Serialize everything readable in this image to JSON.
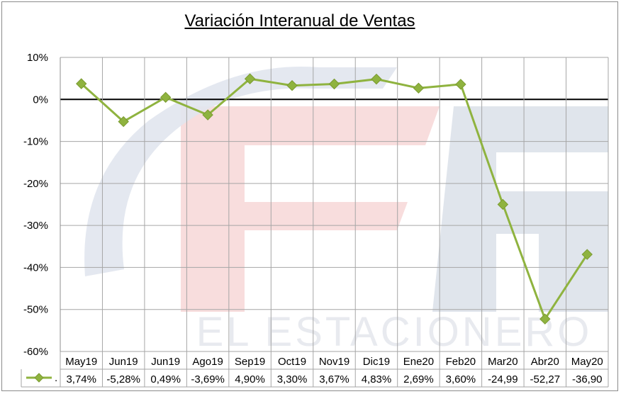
{
  "chart_data": {
    "type": "line",
    "title": "Variación Interanual de Ventas",
    "categories": [
      "May19",
      "Jun19",
      "Jun19",
      "Ago19",
      "Sep19",
      "Oct19",
      "Nov19",
      "Dic19",
      "Ene20",
      "Feb20",
      "Mar20",
      "Abr20",
      "May20"
    ],
    "series": [
      {
        "values": [
          3.74,
          -5.28,
          0.49,
          -3.69,
          4.9,
          3.3,
          3.67,
          4.83,
          2.69,
          3.6,
          -24.99,
          -52.27,
          -36.9
        ],
        "color": "#8fb33f"
      }
    ],
    "table_labels": [
      "3,74%",
      "-5,28%",
      "0,49%",
      "-3,69%",
      "4,90%",
      "3,30%",
      "3,67%",
      "4,83%",
      "2,69%",
      "3,60%",
      "-24,99",
      "-52,27",
      "-36,90"
    ],
    "ylim": [
      -60,
      10
    ],
    "y_ticks": [
      "10%",
      "0%",
      "-10%",
      "-20%",
      "-30%",
      "-40%",
      "-50%",
      "-60%"
    ],
    "legend_marker_label": ".",
    "grid": true,
    "data_table": true,
    "watermark": "EL ESTACIONERO"
  }
}
